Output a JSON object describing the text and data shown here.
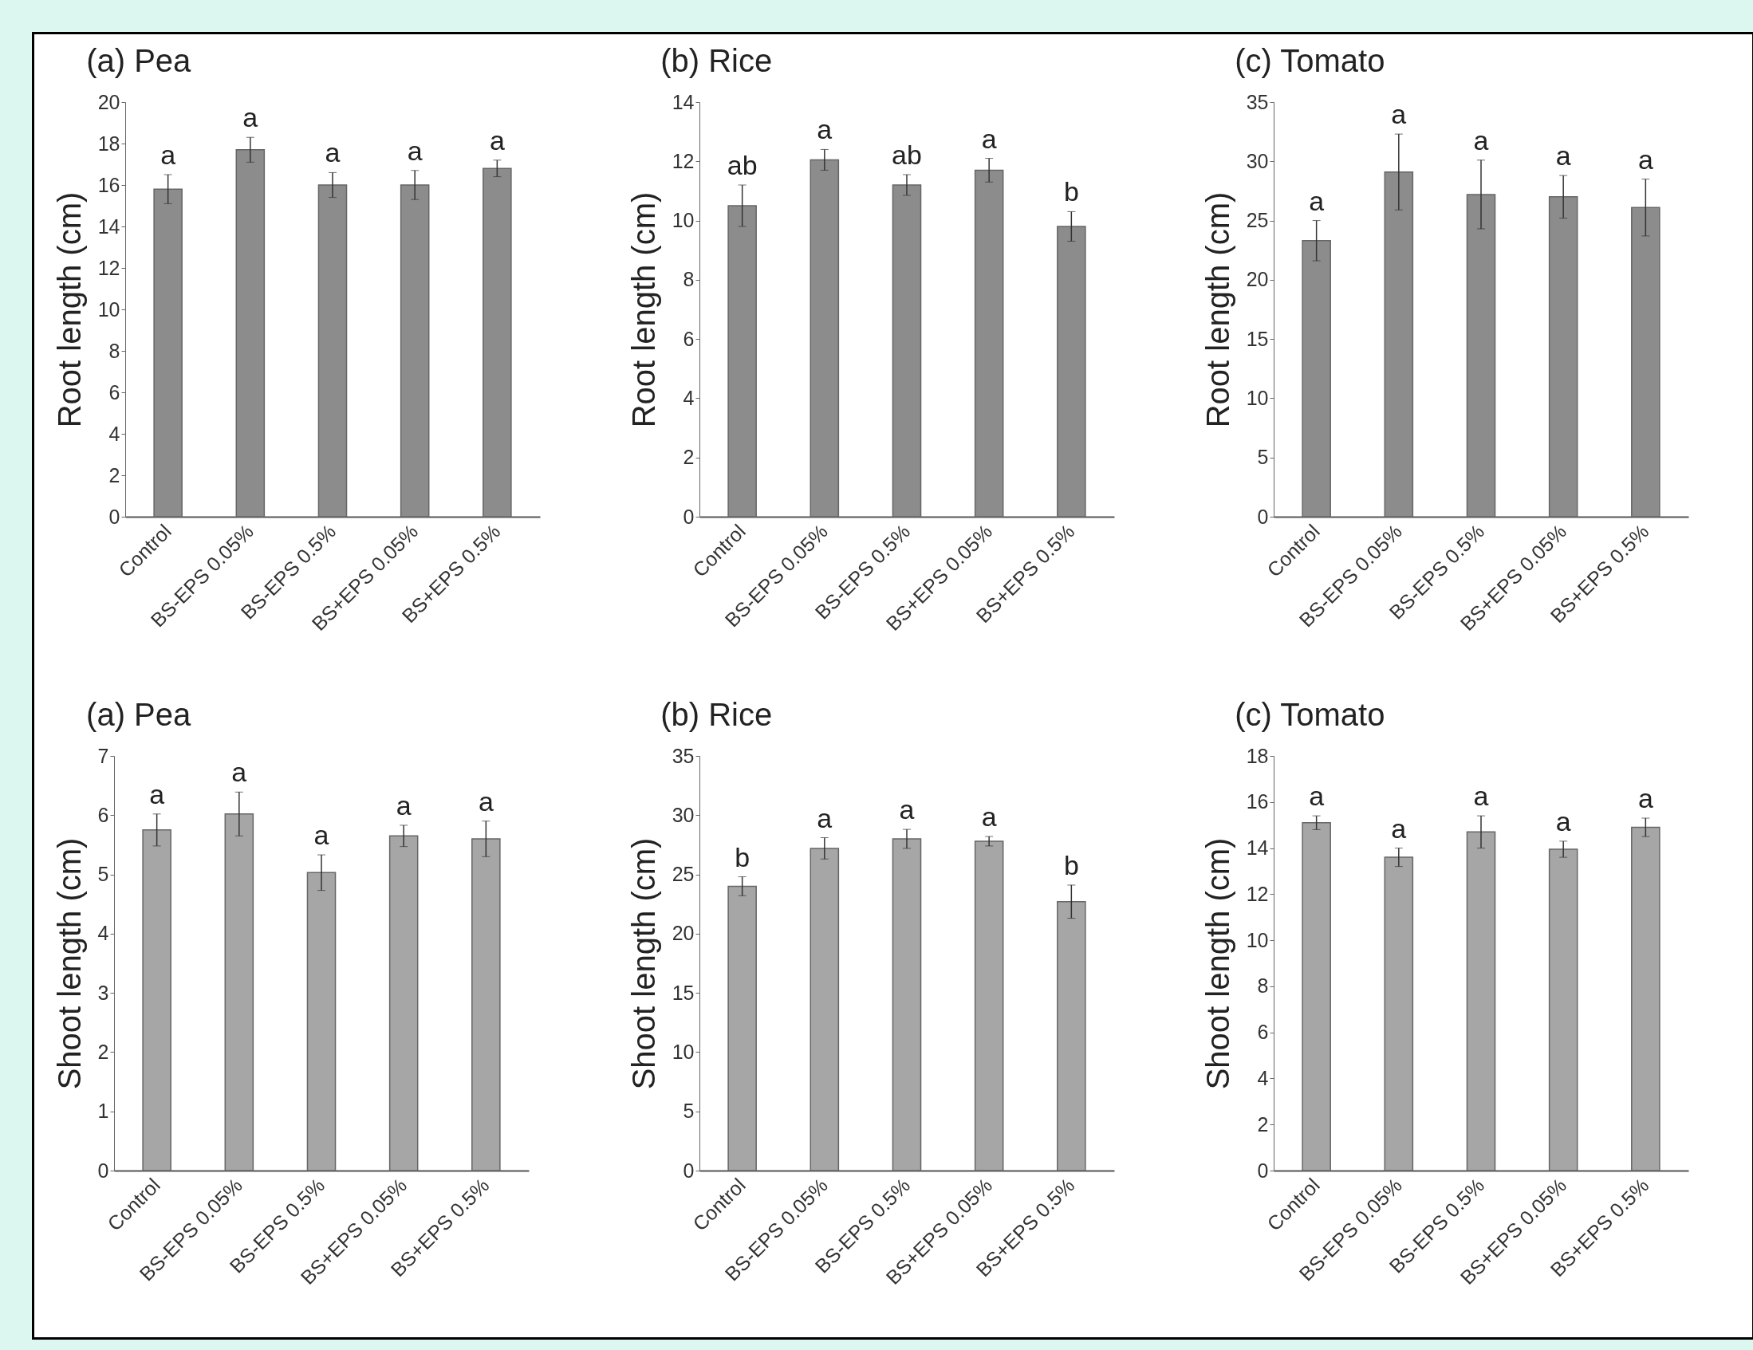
{
  "chart_data": [
    {
      "type": "bar",
      "title": "(a) Pea",
      "ylabel": "Root length (cm)",
      "categories": [
        "Control",
        "BS-EPS 0.05%",
        "BS-EPS 0.5%",
        "BS+EPS 0.05%",
        "BS+EPS 0.5%"
      ],
      "values": [
        15.8,
        17.7,
        16.0,
        16.0,
        16.8
      ],
      "errors": [
        0.7,
        0.6,
        0.6,
        0.7,
        0.4
      ],
      "color": "#8c8c8c",
      "ylim": [
        0,
        20
      ],
      "yticks": [
        0,
        2,
        4,
        6,
        8,
        10,
        12,
        14,
        16,
        18,
        20
      ],
      "annotations": [
        {
          "text": "a",
          "x": "Control",
          "y": 16.5
        },
        {
          "text": "a",
          "x": "BS-EPS 0.05%",
          "y": 18.3
        },
        {
          "text": "a",
          "x": "BS-EPS 0.5%",
          "y": 16.6
        },
        {
          "text": "a",
          "x": "BS+EPS 0.05%",
          "y": 16.7
        },
        {
          "text": "a",
          "x": "BS+EPS 0.5%",
          "y": 17.2
        }
      ]
    },
    {
      "type": "bar",
      "title": "(b) Rice",
      "ylabel": "Root length (cm)",
      "categories": [
        "Control",
        "BS-EPS 0.05%",
        "BS-EPS 0.5%",
        "BS+EPS 0.05%",
        "BS+EPS 0.5%"
      ],
      "values": [
        10.5,
        12.05,
        11.2,
        11.7,
        9.8
      ],
      "errors": [
        0.7,
        0.35,
        0.35,
        0.4,
        0.5
      ],
      "color": "#8c8c8c",
      "ylim": [
        0,
        14
      ],
      "yticks": [
        0,
        2,
        4,
        6,
        8,
        10,
        12,
        14
      ],
      "annotations": [
        {
          "text": "ab",
          "x": "Control",
          "y": 11.2
        },
        {
          "text": "a",
          "x": "BS-EPS 0.05%",
          "y": 12.4
        },
        {
          "text": "ab",
          "x": "BS-EPS 0.5%",
          "y": 11.55
        },
        {
          "text": "a",
          "x": "BS+EPS 0.05%",
          "y": 12.1
        },
        {
          "text": "b",
          "x": "BS+EPS 0.5%",
          "y": 10.3
        }
      ]
    },
    {
      "type": "bar",
      "title": "(c) Tomato",
      "ylabel": "Root length (cm)",
      "categories": [
        "Control",
        "BS-EPS 0.05%",
        "BS-EPS 0.5%",
        "BS+EPS 0.05%",
        "BS+EPS 0.5%"
      ],
      "values": [
        23.3,
        29.1,
        27.2,
        27.0,
        26.1
      ],
      "errors": [
        1.7,
        3.2,
        2.9,
        1.8,
        2.4
      ],
      "color": "#8c8c8c",
      "ylim": [
        0,
        35
      ],
      "yticks": [
        0,
        5,
        10,
        15,
        20,
        25,
        30,
        35
      ],
      "annotations": [
        {
          "text": "a",
          "x": "Control",
          "y": 25.0
        },
        {
          "text": "a",
          "x": "BS-EPS 0.05%",
          "y": 32.3
        },
        {
          "text": "a",
          "x": "BS-EPS 0.5%",
          "y": 30.1
        },
        {
          "text": "a",
          "x": "BS+EPS 0.05%",
          "y": 28.8
        },
        {
          "text": "a",
          "x": "BS+EPS 0.5%",
          "y": 28.5
        }
      ]
    },
    {
      "type": "bar",
      "title": "(a) Pea",
      "ylabel": "Shoot length (cm)",
      "categories": [
        "Control",
        "BS-EPS 0.05%",
        "BS-EPS 0.5%",
        "BS+EPS 0.05%",
        "BS+EPS 0.5%"
      ],
      "values": [
        5.75,
        6.02,
        5.03,
        5.65,
        5.6
      ],
      "errors": [
        0.27,
        0.37,
        0.3,
        0.18,
        0.3
      ],
      "color": "#a6a6a6",
      "ylim": [
        0,
        7
      ],
      "yticks": [
        0,
        1,
        2,
        3,
        4,
        5,
        6,
        7
      ],
      "annotations": [
        {
          "text": "a",
          "x": "Control",
          "y": 6.02
        },
        {
          "text": "a",
          "x": "BS-EPS 0.05%",
          "y": 6.39
        },
        {
          "text": "a",
          "x": "BS-EPS 0.5%",
          "y": 5.33
        },
        {
          "text": "a",
          "x": "BS+EPS 0.05%",
          "y": 5.83
        },
        {
          "text": "a",
          "x": "BS+EPS 0.5%",
          "y": 5.9
        }
      ]
    },
    {
      "type": "bar",
      "title": "(b) Rice",
      "ylabel": "Shoot length (cm)",
      "categories": [
        "Control",
        "BS-EPS 0.05%",
        "BS-EPS 0.5%",
        "BS+EPS 0.05%",
        "BS+EPS 0.5%"
      ],
      "values": [
        24.0,
        27.2,
        28.0,
        27.8,
        22.7
      ],
      "errors": [
        0.8,
        0.9,
        0.8,
        0.4,
        1.4
      ],
      "color": "#a6a6a6",
      "ylim": [
        0,
        35
      ],
      "yticks": [
        0,
        5,
        10,
        15,
        20,
        25,
        30,
        35
      ],
      "annotations": [
        {
          "text": "b",
          "x": "Control",
          "y": 24.8
        },
        {
          "text": "a",
          "x": "BS-EPS 0.05%",
          "y": 28.1
        },
        {
          "text": "a",
          "x": "BS-EPS 0.5%",
          "y": 28.8
        },
        {
          "text": "a",
          "x": "BS+EPS 0.05%",
          "y": 28.2
        },
        {
          "text": "b",
          "x": "BS+EPS 0.5%",
          "y": 24.1
        }
      ]
    },
    {
      "type": "bar",
      "title": "(c) Tomato",
      "ylabel": "Shoot length (cm)",
      "categories": [
        "Control",
        "BS-EPS 0.05%",
        "BS-EPS 0.5%",
        "BS+EPS 0.05%",
        "BS+EPS 0.5%"
      ],
      "values": [
        15.1,
        13.6,
        14.7,
        13.95,
        14.9
      ],
      "errors": [
        0.3,
        0.4,
        0.7,
        0.35,
        0.4
      ],
      "color": "#a6a6a6",
      "ylim": [
        0,
        18
      ],
      "yticks": [
        0,
        2,
        4,
        6,
        8,
        10,
        12,
        14,
        16,
        18
      ],
      "annotations": [
        {
          "text": "a",
          "x": "Control",
          "y": 15.4
        },
        {
          "text": "a",
          "x": "BS-EPS 0.05%",
          "y": 14.0
        },
        {
          "text": "a",
          "x": "BS-EPS 0.5%",
          "y": 15.4
        },
        {
          "text": "a",
          "x": "BS+EPS 0.05%",
          "y": 14.3
        },
        {
          "text": "a",
          "x": "BS+EPS 0.5%",
          "y": 15.3
        }
      ]
    }
  ]
}
